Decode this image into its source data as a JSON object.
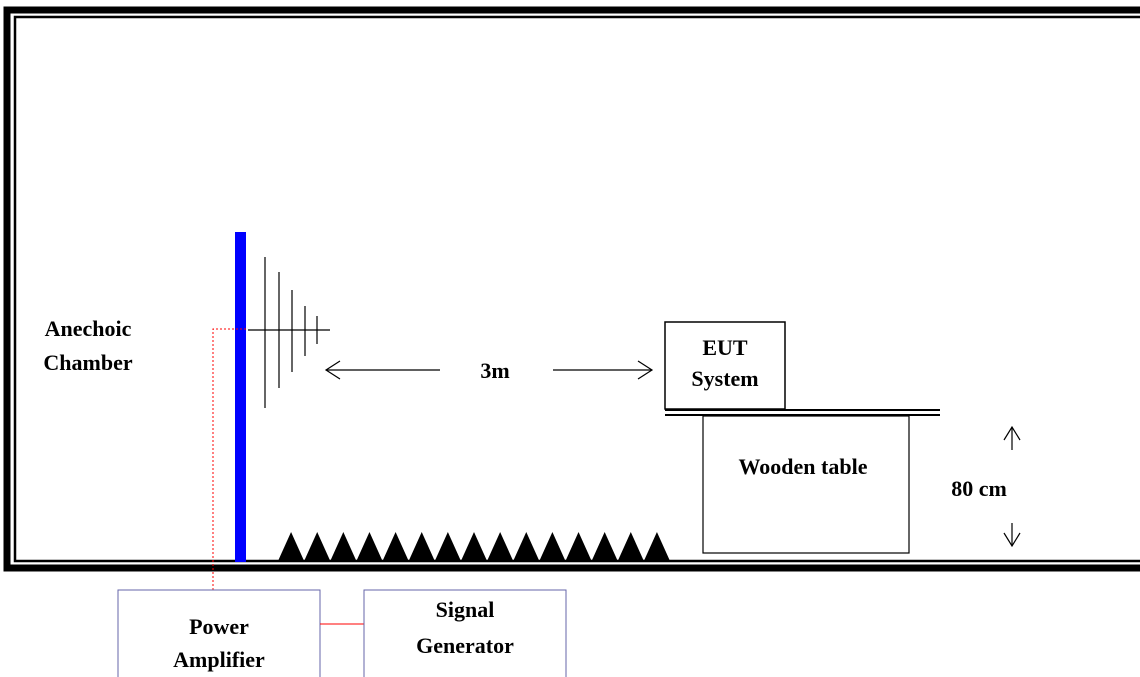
{
  "labels": {
    "chamber_line1": "Anechoic",
    "chamber_line2": "Chamber",
    "distance": "3m",
    "eut_line1": "EUT",
    "eut_line2": "System",
    "table": "Wooden table",
    "height": "80 cm",
    "amplifier_line1": "Power",
    "amplifier_line2": "Amplifier",
    "generator_line1": "Signal",
    "generator_line2": "Generator"
  },
  "colors": {
    "antenna_mast": "#0000ff",
    "equipment_box_border": "#6666aa",
    "connection_line": "#ff0000",
    "absorber": "#000000",
    "chamber_wall": "#000000"
  },
  "absorber_cone_count": 15
}
